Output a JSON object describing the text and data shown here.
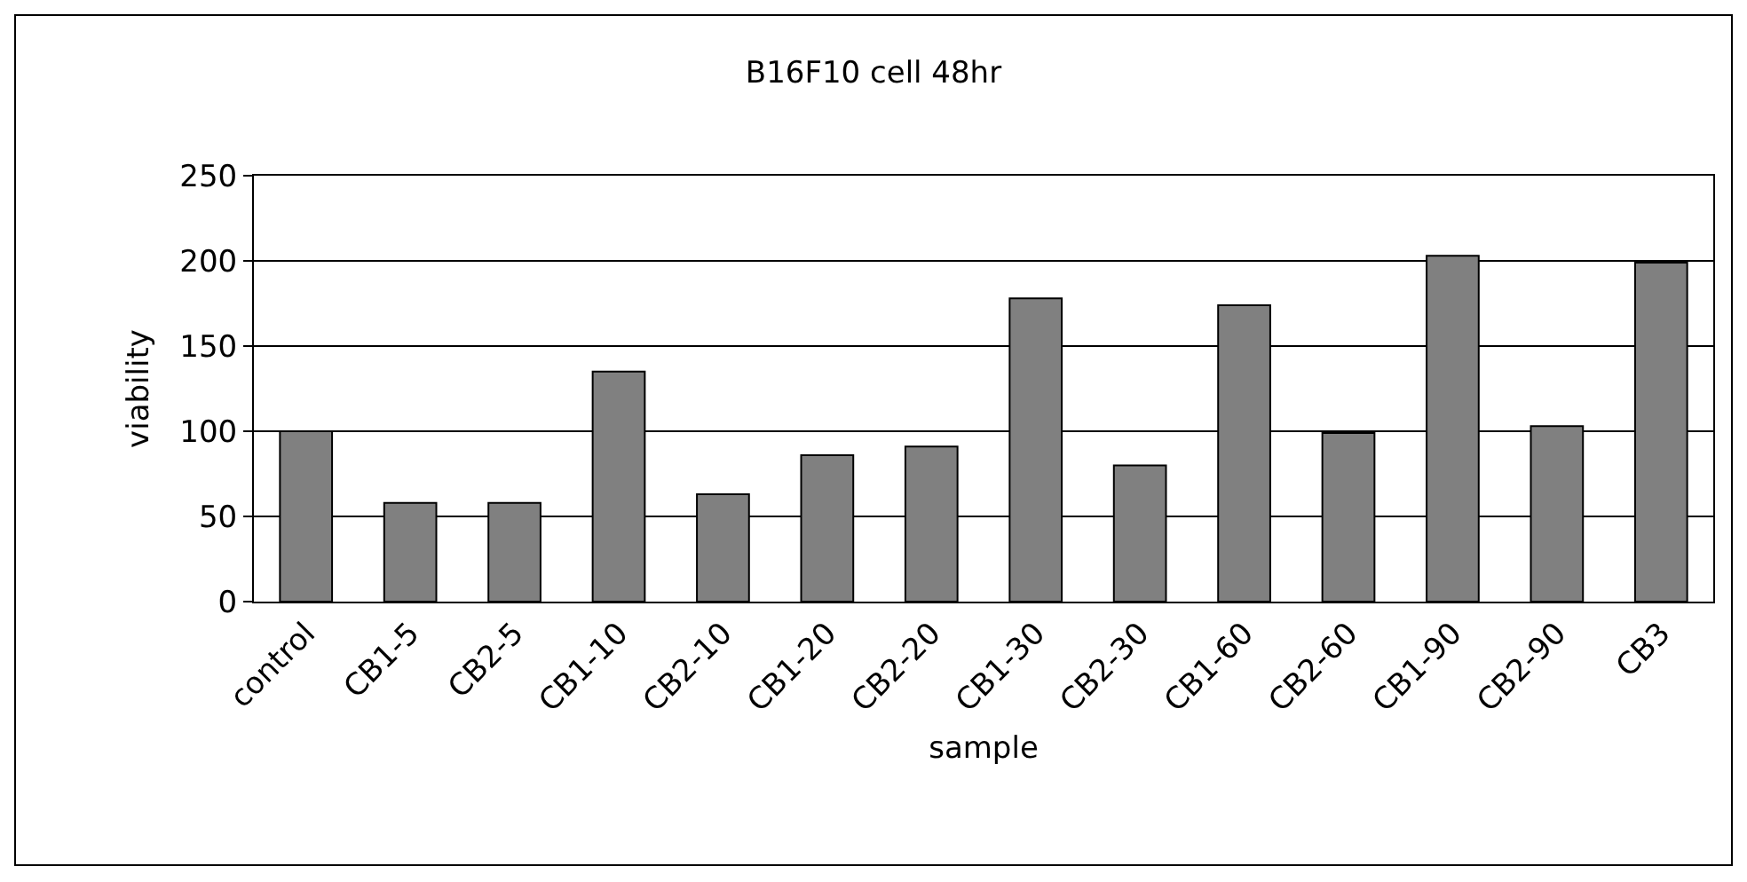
{
  "chart_data": {
    "type": "bar",
    "title": "B16F10 cell 48hr",
    "xlabel": "sample",
    "ylabel": "viability",
    "categories": [
      "control",
      "CB1-5",
      "CB2-5",
      "CB1-10",
      "CB2-10",
      "CB1-20",
      "CB2-20",
      "CB1-30",
      "CB2-30",
      "CB1-60",
      "CB2-60",
      "CB1-90",
      "CB2-90",
      "CB3"
    ],
    "values": [
      100,
      58,
      58,
      135,
      63,
      86,
      91,
      178,
      80,
      174,
      99,
      203,
      103,
      199
    ],
    "color": "#808080",
    "ylim": [
      0,
      250
    ],
    "yticks": [
      0,
      50,
      100,
      150,
      200,
      250
    ],
    "grid": "y"
  }
}
